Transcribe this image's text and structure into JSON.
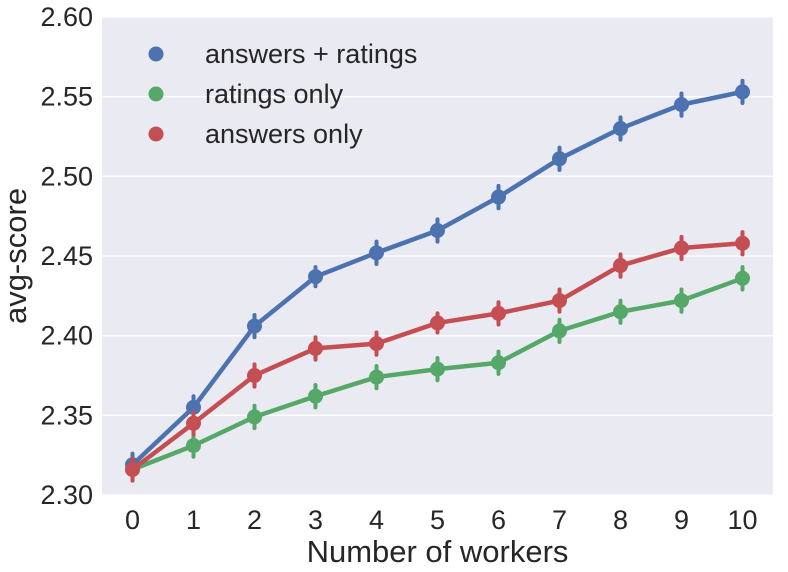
{
  "chart_data": {
    "type": "line",
    "title": "",
    "xlabel": "Number of workers",
    "ylabel": "avg-score",
    "x": [
      0,
      1,
      2,
      3,
      4,
      5,
      6,
      7,
      8,
      9,
      10
    ],
    "x_tick_labels": [
      "0",
      "1",
      "2",
      "3",
      "4",
      "5",
      "6",
      "7",
      "8",
      "9",
      "10"
    ],
    "ylim": [
      2.3,
      2.6
    ],
    "y_ticks": [
      2.3,
      2.35,
      2.4,
      2.45,
      2.5,
      2.55,
      2.6
    ],
    "y_tick_labels": [
      "2.30",
      "2.35",
      "2.40",
      "2.45",
      "2.50",
      "2.55",
      "2.60"
    ],
    "grid": true,
    "legend_position": "top-left",
    "background": "#eaeaf2",
    "series": [
      {
        "name": "answers + ratings",
        "color": "#4c72b0",
        "values": [
          2.319,
          2.355,
          2.406,
          2.437,
          2.452,
          2.466,
          2.487,
          2.511,
          2.53,
          2.545,
          2.553
        ],
        "err": [
          0.007,
          0.007,
          0.007,
          0.006,
          0.007,
          0.007,
          0.007,
          0.007,
          0.007,
          0.007,
          0.007
        ]
      },
      {
        "name": "ratings only",
        "color": "#55a868",
        "values": [
          2.316,
          2.331,
          2.349,
          2.362,
          2.374,
          2.379,
          2.383,
          2.403,
          2.415,
          2.422,
          2.436
        ],
        "err": [
          0.007,
          0.007,
          0.007,
          0.007,
          0.007,
          0.007,
          0.007,
          0.007,
          0.007,
          0.007,
          0.007
        ]
      },
      {
        "name": "answers only",
        "color": "#c44e52",
        "values": [
          2.316,
          2.345,
          2.375,
          2.392,
          2.395,
          2.408,
          2.414,
          2.422,
          2.444,
          2.455,
          2.458
        ],
        "err": [
          0.007,
          0.007,
          0.007,
          0.007,
          0.007,
          0.006,
          0.007,
          0.007,
          0.007,
          0.007,
          0.007
        ]
      }
    ]
  }
}
